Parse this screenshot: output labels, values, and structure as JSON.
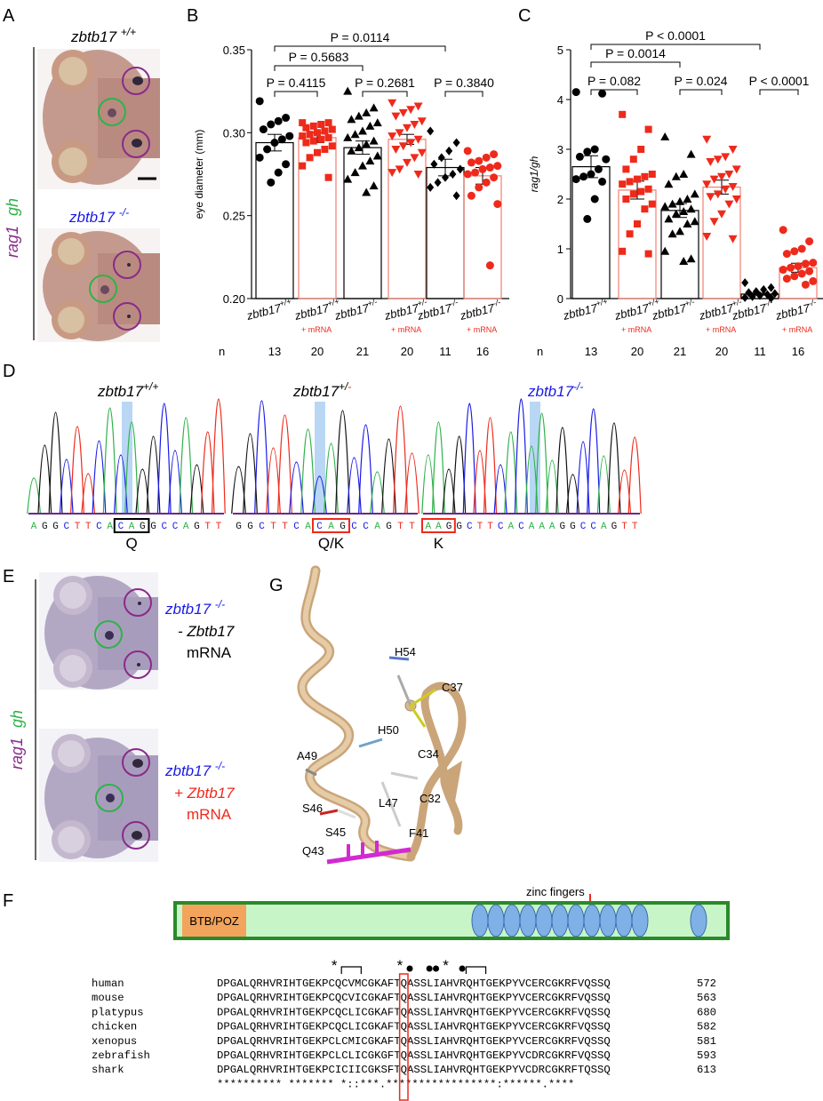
{
  "panels": {
    "A": "A",
    "B": "B",
    "C": "C",
    "D": "D",
    "E": "E",
    "F": "F",
    "G": "G"
  },
  "panelA": {
    "side_label_1": "rag1",
    "side_label_2": "gh",
    "top_genotype": "zbtb17",
    "top_sup": "+/+",
    "bottom_genotype": "zbtb17",
    "bottom_sup": "-/-"
  },
  "panelE": {
    "side_label_1": "rag1",
    "side_label_2": "gh",
    "top_genotype": "zbtb17",
    "top_sup": "-/-",
    "top_line2": "- Zbtb17",
    "top_line3": "mRNA",
    "bottom_genotype": "zbtb17",
    "bottom_sup": "-/-",
    "bottom_line2": "+ Zbtb17",
    "bottom_line3": "mRNA"
  },
  "colors": {
    "black": "#000000",
    "red": "#ee2a1b",
    "blue": "#1a1ae6",
    "green": "#2fb24a",
    "purple": "#8a2a8a",
    "tan": "#d8b88a",
    "magenta": "#d22ad2",
    "zf_blue": "#7fb0e6",
    "btb_orange": "#f2a45c",
    "bar_green": "#c8f5c8"
  },
  "groups": {
    "genotypes": [
      "zbtb17",
      "zbtb17",
      "zbtb17",
      "zbtb17",
      "zbtb17",
      "zbtb17"
    ],
    "sups": [
      "+/+",
      "+/+",
      "+/-",
      "+/-",
      "-/-",
      "-/-"
    ],
    "mrna": "+ mRNA",
    "n_label": "n",
    "n_values": [
      "13",
      "20",
      "21",
      "20",
      "11",
      "16"
    ]
  },
  "chart_data": [
    {
      "type": "scatter",
      "ylabel": "eye diameter (mm)",
      "ylim": [
        0.2,
        0.35
      ],
      "yticks": [
        "0.20",
        "0.25",
        "0.30",
        "0.35"
      ],
      "bar_means": [
        0.294,
        0.297,
        0.291,
        0.296,
        0.279,
        0.274
      ],
      "sems": [
        0.005,
        0.003,
        0.004,
        0.003,
        0.005,
        0.005
      ],
      "series": [
        {
          "values": [
            0.319,
            0.309,
            0.307,
            0.305,
            0.302,
            0.298,
            0.296,
            0.294,
            0.29,
            0.285,
            0.281,
            0.276,
            0.27
          ]
        },
        {
          "values": [
            0.306,
            0.306,
            0.305,
            0.304,
            0.303,
            0.302,
            0.301,
            0.3,
            0.299,
            0.298,
            0.297,
            0.296,
            0.295,
            0.294,
            0.292,
            0.29,
            0.288,
            0.285,
            0.28,
            0.273
          ]
        },
        {
          "values": [
            0.325,
            0.315,
            0.312,
            0.31,
            0.308,
            0.306,
            0.304,
            0.301,
            0.299,
            0.297,
            0.295,
            0.293,
            0.291,
            0.289,
            0.286,
            0.283,
            0.28,
            0.276,
            0.272,
            0.268,
            0.264
          ]
        },
        {
          "values": [
            0.318,
            0.316,
            0.314,
            0.312,
            0.31,
            0.307,
            0.305,
            0.303,
            0.3,
            0.298,
            0.296,
            0.294,
            0.292,
            0.29,
            0.288,
            0.285,
            0.282,
            0.278,
            0.276,
            0.275
          ]
        },
        {
          "values": [
            0.301,
            0.294,
            0.289,
            0.285,
            0.281,
            0.278,
            0.275,
            0.273,
            0.27,
            0.267,
            0.262
          ]
        },
        {
          "values": [
            0.289,
            0.287,
            0.285,
            0.283,
            0.282,
            0.28,
            0.279,
            0.278,
            0.276,
            0.275,
            0.273,
            0.27,
            0.267,
            0.262,
            0.257,
            0.22
          ]
        }
      ],
      "comparisons": [
        {
          "label": "P = 0.0114"
        },
        {
          "label": "P = 0.5683"
        },
        {
          "label": "P = 0.4115"
        },
        {
          "label": "P = 0.2681"
        },
        {
          "label": "P = 0.3840"
        }
      ]
    },
    {
      "type": "scatter",
      "ylabel": "rag1/gh",
      "ylim": [
        0,
        5
      ],
      "yticks": [
        "0",
        "1",
        "2",
        "3",
        "4",
        "5"
      ],
      "bar_means": [
        2.65,
        2.18,
        1.77,
        2.24,
        0.09,
        0.62
      ],
      "sems": [
        0.22,
        0.18,
        0.14,
        0.14,
        0.02,
        0.09
      ],
      "series": [
        {
          "values": [
            4.15,
            4.12,
            3.0,
            2.95,
            2.85,
            2.8,
            2.6,
            2.5,
            2.45,
            2.4,
            2.35,
            2.0,
            1.6
          ]
        },
        {
          "values": [
            3.7,
            3.4,
            3.0,
            2.8,
            2.6,
            2.5,
            2.45,
            2.4,
            2.35,
            2.3,
            2.2,
            2.15,
            2.1,
            2.0,
            1.9,
            1.8,
            1.5,
            1.3,
            0.95,
            0.9
          ]
        },
        {
          "values": [
            3.25,
            2.9,
            2.5,
            2.45,
            2.3,
            2.1,
            2.0,
            1.95,
            1.9,
            1.85,
            1.8,
            1.75,
            1.7,
            1.6,
            1.55,
            1.5,
            1.35,
            1.3,
            0.95,
            0.8,
            0.75
          ]
        },
        {
          "values": [
            3.2,
            3.0,
            2.85,
            2.8,
            2.75,
            2.6,
            2.5,
            2.45,
            2.4,
            2.3,
            2.25,
            2.2,
            2.1,
            2.05,
            2.0,
            1.9,
            1.7,
            1.55,
            1.25,
            1.2
          ]
        },
        {
          "values": [
            0.32,
            0.22,
            0.18,
            0.14,
            0.12,
            0.1,
            0.08,
            0.06,
            0.04,
            0.02,
            0.01
          ]
        },
        {
          "values": [
            1.38,
            1.15,
            1.0,
            0.95,
            0.9,
            0.72,
            0.7,
            0.65,
            0.62,
            0.58,
            0.55,
            0.5,
            0.45,
            0.4,
            0.35,
            0.28
          ]
        }
      ],
      "comparisons": [
        {
          "label": "P < 0.0001"
        },
        {
          "label": "P = 0.0014"
        },
        {
          "label": "P = 0.082"
        },
        {
          "label": "P = 0.024"
        },
        {
          "label": "P < 0.0001"
        }
      ]
    }
  ],
  "panelD": {
    "traces": [
      {
        "title": "zbtb17",
        "sup1": "+/",
        "sup2": "+",
        "bases": "AGGCTTCACAGGCCAGTT",
        "box": "CAG",
        "aa": "Q"
      },
      {
        "title": "zbtb17",
        "sup1": "+/",
        "sup2": "-",
        "bases": "GGCTTCACAGCCAGTT",
        "box": "CAG",
        "aa": "Q/K"
      },
      {
        "title": "zbtb17",
        "sup1": "-/",
        "sup2": "-",
        "bases": "AAGGCTTCACAAAGGCCAGTT",
        "box": "AAG",
        "aa": "K"
      }
    ]
  },
  "panelG": {
    "residues": [
      "H54",
      "C37",
      "H50",
      "C34",
      "A49",
      "L47",
      "C32",
      "S46",
      "S45",
      "F41",
      "Q43"
    ]
  },
  "panelF": {
    "domain_label": "BTB/POZ",
    "zf_label": "zinc fingers",
    "marks": "*  *  *",
    "species": [
      {
        "name": "human",
        "seq": "DPGALQRHVRIHTGEKPCQCVMCGKAFTQASSLIAHVRQHTGEKPYVCERCGKRFVQSSQ",
        "end": "572"
      },
      {
        "name": "mouse",
        "seq": "DPGALQRHVRIHTGEKPCQCVICGKAFTQASSLIAHVRQHTGEKPYVCERCGKRFVQSSQ",
        "end": "563"
      },
      {
        "name": "platypus",
        "seq": "DPGALQRHVRIHTGEKPCQCLICGKAFTQASSLIAHVRQHTGEKPYVCERCGKRFVQSSQ",
        "end": "680"
      },
      {
        "name": "chicken",
        "seq": "DPGALQRHVRIHTGEKPCQCLICGKAFTQASSLIAHVRQHTGEKPYVCERCGKRFVQSSQ",
        "end": "582"
      },
      {
        "name": "xenopus",
        "seq": "DPGALQRHVRIHTGEKPCLCMICGKAFTQASSLIAHVRQHTGEKPYVCERCGKRFVQSSQ",
        "end": "581"
      },
      {
        "name": "zebrafish",
        "seq": "DPGALQRHVRIHTGEKPCLCLICGKGFTQASSLIAHVRQHTGEKPYVCDRCGKRFVQSSQ",
        "end": "593"
      },
      {
        "name": "shark",
        "seq": "DPGALQRHVRIHTGEKPCICIICGKSFTQASSLIAHVRQHTGEKPYVCDRCGKRFTQSSQ",
        "end": "613"
      }
    ],
    "consensus": "********** ******* *::***.*****************:******.****"
  }
}
